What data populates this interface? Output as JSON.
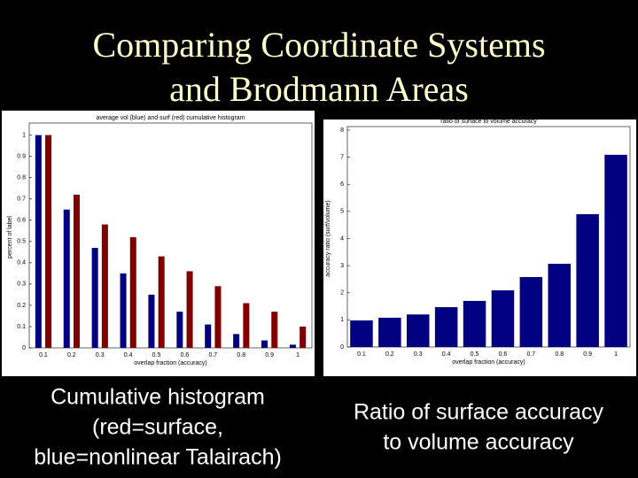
{
  "slide": {
    "title": [
      "Comparing Coordinate Systems",
      "and Brodmann Areas"
    ]
  },
  "chart_data": [
    {
      "type": "bar",
      "title": "average vol (blue) and surf (red) cumulative histogram",
      "x_label": "overlap fraction (accuracy)",
      "y_label": "percent of label",
      "caption": [
        "Cumulative histogram",
        "(red=surface,",
        "blue=nonlinear Talairach)"
      ],
      "categories": [
        "0.1",
        "0.2",
        "0.3",
        "0.4",
        "0.5",
        "0.6",
        "0.7",
        "0.8",
        "0.9",
        "1"
      ],
      "series": [
        {
          "color": "#000080",
          "values": [
            1,
            0.65,
            0.47,
            0.35,
            0.25,
            0.17,
            0.11,
            0.065,
            0.035,
            0.015
          ]
        },
        {
          "color": "#800000",
          "values": [
            1,
            0.72,
            0.58,
            0.52,
            0.43,
            0.36,
            0.29,
            0.21,
            0.17,
            0.1
          ]
        }
      ],
      "ylim": [
        0,
        1.04
      ],
      "yticks": [
        0,
        0.1,
        0.2,
        0.3,
        0.4,
        0.5,
        0.6,
        0.7,
        0.8,
        0.9,
        1
      ]
    },
    {
      "type": "bar",
      "title": "ratio of surface to volume accuracy",
      "x_label": "overlap fraction (accuracy)",
      "y_label": "accuracy ratio (surf/volume)",
      "caption": [
        "Ratio of surface accuracy",
        "to volume accuracy"
      ],
      "categories": [
        "0.1",
        "0.2",
        "0.3",
        "0.4",
        "0.5",
        "0.6",
        "0.7",
        "0.8",
        "0.9",
        "1"
      ],
      "series": [
        {
          "color": "#000080",
          "values": [
            0.98,
            1.08,
            1.2,
            1.47,
            1.7,
            2.09,
            2.58,
            3.07,
            4.9,
            7.09
          ]
        }
      ],
      "ylim": [
        0,
        8
      ],
      "yticks": [
        0,
        1,
        2,
        3,
        4,
        5,
        6,
        7,
        8
      ]
    }
  ]
}
